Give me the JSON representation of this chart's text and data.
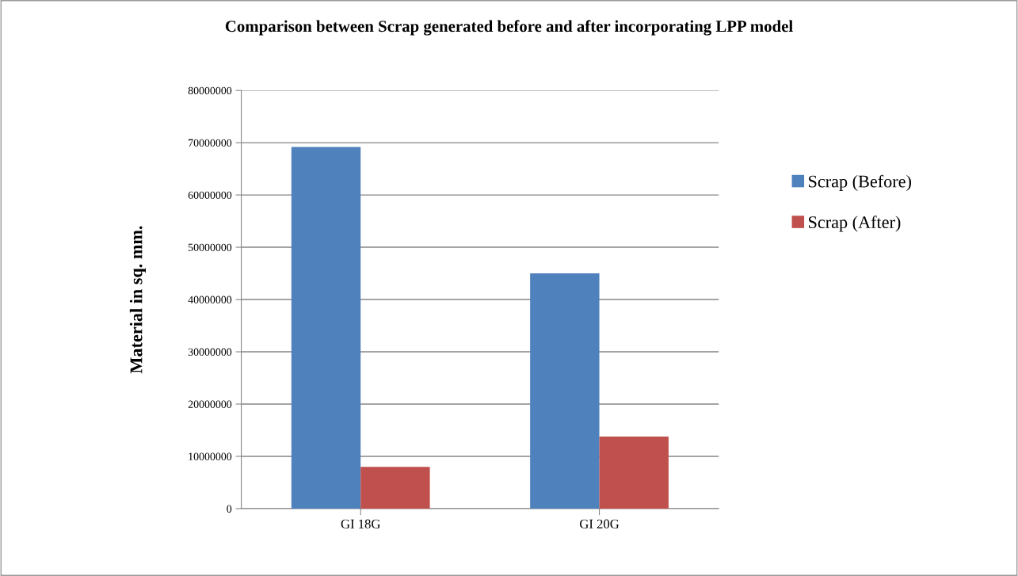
{
  "chart_data": {
    "type": "bar",
    "title": "Comparison between Scrap generated before and after incorporating LPP model",
    "ylabel": "Material in sq. mm.",
    "categories": [
      "GI 18G",
      "GI 20G"
    ],
    "series": [
      {
        "name": "Scrap (Before)",
        "color": "#4f81bd",
        "values": [
          69200000,
          45000000
        ]
      },
      {
        "name": "Scrap (After)",
        "color": "#c0504d",
        "values": [
          8000000,
          13800000
        ]
      }
    ],
    "ylim": [
      0,
      80000000
    ],
    "yticks": [
      0,
      10000000,
      20000000,
      30000000,
      40000000,
      50000000,
      60000000,
      70000000,
      80000000
    ],
    "grid": "y",
    "legend": "right"
  }
}
